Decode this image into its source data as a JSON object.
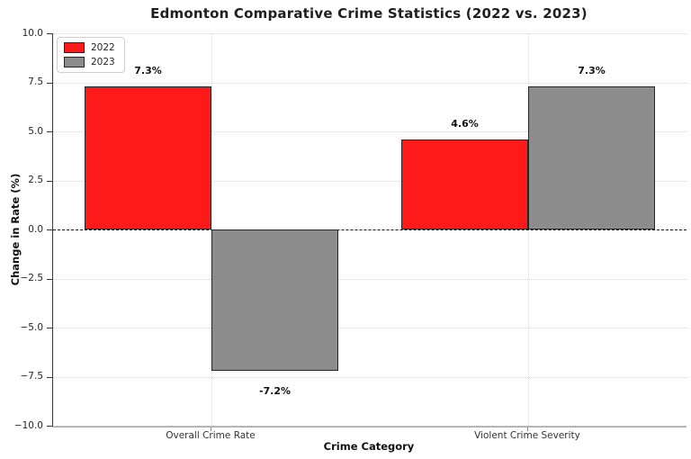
{
  "chart_data": {
    "type": "bar",
    "title": "Edmonton Comparative Crime Statistics (2022 vs. 2023)",
    "xlabel": "Crime Category",
    "ylabel": "Change in Rate (%)",
    "categories": [
      "Overall Crime Rate",
      "Violent Crime Severity"
    ],
    "series": [
      {
        "name": "2022",
        "color": "#ff1a1a",
        "values": [
          7.3,
          4.6
        ],
        "data_labels": [
          "7.3%",
          "4.6%"
        ]
      },
      {
        "name": "2023",
        "color": "#8c8c8c",
        "values": [
          -7.2,
          7.3
        ],
        "data_labels": [
          "-7.2%",
          "7.3%"
        ]
      }
    ],
    "ylim": [
      -10.0,
      10.0
    ],
    "ytick_values": [
      10.0,
      7.5,
      5.0,
      2.5,
      0.0,
      -2.5,
      -5.0,
      -7.5,
      -10.0
    ],
    "ytick_labels": [
      "10.0",
      "7.5",
      "5.0",
      "2.5",
      "0.0",
      "−2.5",
      "−5.0",
      "−7.5",
      "−10.0"
    ],
    "grid": true,
    "legend_position": "upper-left",
    "zero_line": "dashed",
    "bar_edge_color": "#262626"
  }
}
